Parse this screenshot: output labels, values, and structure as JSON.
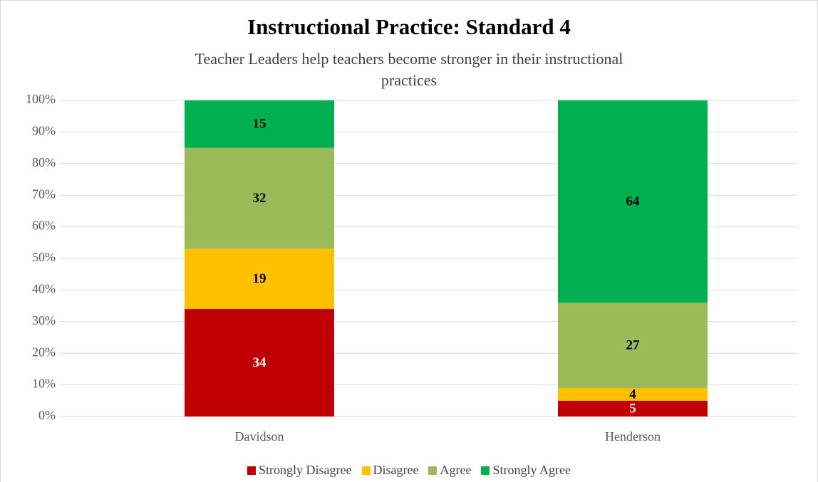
{
  "chart_data": {
    "type": "stacked_bar",
    "title": "Instructional Practice: Standard 4",
    "subtitle": "Teacher Leaders help teachers become stronger in their instructional practices",
    "categories": [
      "Davidson",
      "Henderson"
    ],
    "series": [
      {
        "name": "Strongly Disagree",
        "color": "#c00000",
        "label_color": "#ffffff",
        "values": [
          34,
          5
        ]
      },
      {
        "name": "Disagree",
        "color": "#ffc000",
        "label_color": "#000000",
        "values": [
          19,
          4
        ]
      },
      {
        "name": "Agree",
        "color": "#9bbb59",
        "label_color": "#000000",
        "values": [
          32,
          27
        ]
      },
      {
        "name": "Strongly Agree",
        "color": "#00b050",
        "label_color": "#000000",
        "values": [
          15,
          64
        ]
      }
    ],
    "ylim": [
      0,
      100
    ],
    "yticks": [
      {
        "value": 0,
        "label": "0%"
      },
      {
        "value": 10,
        "label": "10%"
      },
      {
        "value": 20,
        "label": "20%"
      },
      {
        "value": 30,
        "label": "30%"
      },
      {
        "value": 40,
        "label": "40%"
      },
      {
        "value": 50,
        "label": "50%"
      },
      {
        "value": 60,
        "label": "60%"
      },
      {
        "value": 70,
        "label": "70%"
      },
      {
        "value": 80,
        "label": "80%"
      },
      {
        "value": 90,
        "label": "90%"
      },
      {
        "value": 100,
        "label": "100%"
      }
    ],
    "grid": true,
    "legend": "bottom"
  }
}
